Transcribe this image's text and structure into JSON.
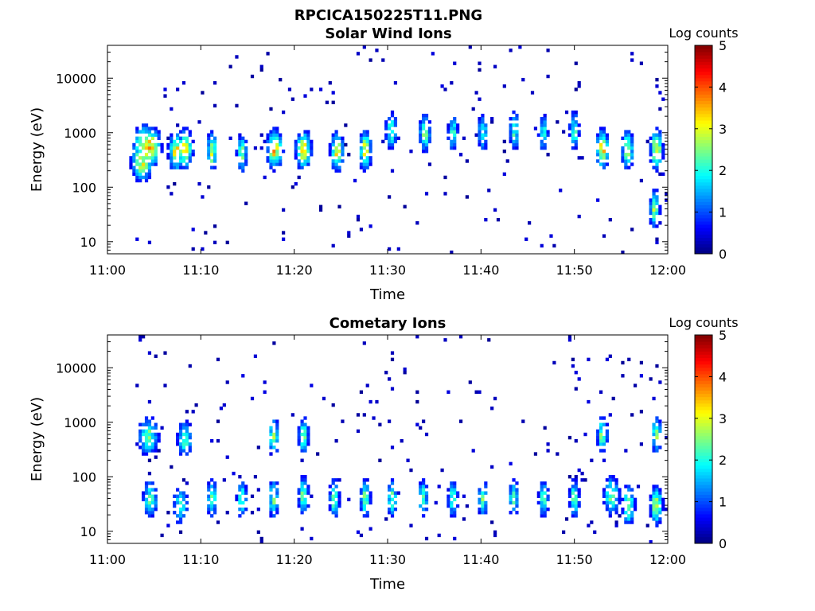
{
  "figure_title": "RPCICA150225T11.PNG",
  "chart_data": [
    {
      "type": "heatmap",
      "title": "Solar Wind Ions",
      "xlabel": "Time",
      "ylabel": "Energy (eV)",
      "x_ticks": [
        "11:00",
        "11:10",
        "11:20",
        "11:30",
        "11:40",
        "11:50",
        "12:00"
      ],
      "x_range_minutes": [
        0,
        60
      ],
      "y_scale": "log",
      "y_ticks": [
        "10",
        "100",
        "1000",
        "10000"
      ],
      "y_range": [
        6,
        40000
      ],
      "colorbar": {
        "label": "Log counts",
        "ticks": [
          "0",
          "1",
          "2",
          "3",
          "4",
          "5"
        ],
        "range": [
          0,
          5
        ],
        "colormap": "jet"
      },
      "grid": false,
      "bursts": [
        {
          "t": 3.7,
          "E": 300,
          "v": 3.0,
          "w": 2
        },
        {
          "t": 4.0,
          "E": 600,
          "v": 3.2,
          "w": 2.2
        },
        {
          "t": 4.3,
          "E": 500,
          "v": 3.1,
          "w": 2
        },
        {
          "t": 4.6,
          "E": 550,
          "v": 3.3,
          "w": 2
        },
        {
          "t": 7.4,
          "E": 450,
          "v": 3.1,
          "w": 1.5
        },
        {
          "t": 8.3,
          "E": 500,
          "v": 3.0,
          "w": 1.5
        },
        {
          "t": 11.2,
          "E": 450,
          "v": 2.8,
          "w": 1
        },
        {
          "t": 14.4,
          "E": 420,
          "v": 2.5,
          "w": 1
        },
        {
          "t": 17.9,
          "E": 500,
          "v": 3.3,
          "w": 1.5
        },
        {
          "t": 21.0,
          "E": 480,
          "v": 3.2,
          "w": 1.5
        },
        {
          "t": 24.6,
          "E": 450,
          "v": 3.0,
          "w": 1.3
        },
        {
          "t": 27.6,
          "E": 480,
          "v": 3.0,
          "w": 1.2
        },
        {
          "t": 30.4,
          "E": 1100,
          "v": 2.2,
          "w": 1.2
        },
        {
          "t": 34.0,
          "E": 1000,
          "v": 2.4,
          "w": 1.2
        },
        {
          "t": 37.0,
          "E": 1000,
          "v": 2.1,
          "w": 1
        },
        {
          "t": 40.2,
          "E": 1000,
          "v": 2.1,
          "w": 1
        },
        {
          "t": 43.6,
          "E": 1100,
          "v": 2.2,
          "w": 1
        },
        {
          "t": 46.7,
          "E": 1000,
          "v": 2.0,
          "w": 1
        },
        {
          "t": 50.0,
          "E": 1100,
          "v": 2.2,
          "w": 1
        },
        {
          "t": 53.0,
          "E": 500,
          "v": 3.3,
          "w": 1.2
        },
        {
          "t": 55.7,
          "E": 500,
          "v": 2.8,
          "w": 1.2
        },
        {
          "t": 58.8,
          "E": 500,
          "v": 3.2,
          "w": 1.2
        },
        {
          "t": 58.6,
          "E": 40,
          "v": 2.6,
          "w": 1
        }
      ]
    },
    {
      "type": "heatmap",
      "title": "Cometary Ions",
      "xlabel": "Time",
      "ylabel": "Energy (eV)",
      "x_ticks": [
        "11:00",
        "11:10",
        "11:20",
        "11:30",
        "11:40",
        "11:50",
        "12:00"
      ],
      "x_range_minutes": [
        0,
        60
      ],
      "y_scale": "log",
      "y_ticks": [
        "10",
        "100",
        "1000",
        "10000"
      ],
      "y_range": [
        6,
        40000
      ],
      "colorbar": {
        "label": "Log counts",
        "ticks": [
          "0",
          "1",
          "2",
          "3",
          "4",
          "5"
        ],
        "range": [
          0,
          5
        ],
        "colormap": "jet"
      },
      "grid": false,
      "bursts": [
        {
          "t": 4.6,
          "E": 40,
          "v": 2.2,
          "w": 1.5
        },
        {
          "t": 4.4,
          "E": 550,
          "v": 2.4,
          "w": 2
        },
        {
          "t": 7.8,
          "E": 30,
          "v": 2.0,
          "w": 1.5
        },
        {
          "t": 8.3,
          "E": 500,
          "v": 2.2,
          "w": 1.5
        },
        {
          "t": 11.2,
          "E": 40,
          "v": 2.4,
          "w": 1
        },
        {
          "t": 14.4,
          "E": 40,
          "v": 2.3,
          "w": 1
        },
        {
          "t": 17.8,
          "E": 40,
          "v": 2.5,
          "w": 1
        },
        {
          "t": 17.8,
          "E": 550,
          "v": 2.6,
          "w": 1
        },
        {
          "t": 21.0,
          "E": 45,
          "v": 2.6,
          "w": 1
        },
        {
          "t": 21.0,
          "E": 550,
          "v": 2.4,
          "w": 1
        },
        {
          "t": 24.3,
          "E": 40,
          "v": 2.5,
          "w": 1
        },
        {
          "t": 27.6,
          "E": 40,
          "v": 2.5,
          "w": 1
        },
        {
          "t": 30.5,
          "E": 40,
          "v": 2.4,
          "w": 1
        },
        {
          "t": 33.8,
          "E": 40,
          "v": 2.3,
          "w": 1
        },
        {
          "t": 37.0,
          "E": 40,
          "v": 2.2,
          "w": 1
        },
        {
          "t": 40.2,
          "E": 40,
          "v": 2.3,
          "w": 1
        },
        {
          "t": 43.5,
          "E": 40,
          "v": 2.2,
          "w": 1
        },
        {
          "t": 46.7,
          "E": 40,
          "v": 2.2,
          "w": 1
        },
        {
          "t": 50.0,
          "E": 40,
          "v": 2.4,
          "w": 1
        },
        {
          "t": 53.0,
          "E": 600,
          "v": 2.5,
          "w": 1
        },
        {
          "t": 54.0,
          "E": 45,
          "v": 2.6,
          "w": 1.5
        },
        {
          "t": 55.8,
          "E": 30,
          "v": 2.8,
          "w": 1.2
        },
        {
          "t": 58.8,
          "E": 30,
          "v": 2.8,
          "w": 1.2
        },
        {
          "t": 58.8,
          "E": 600,
          "v": 2.5,
          "w": 1
        }
      ]
    }
  ]
}
